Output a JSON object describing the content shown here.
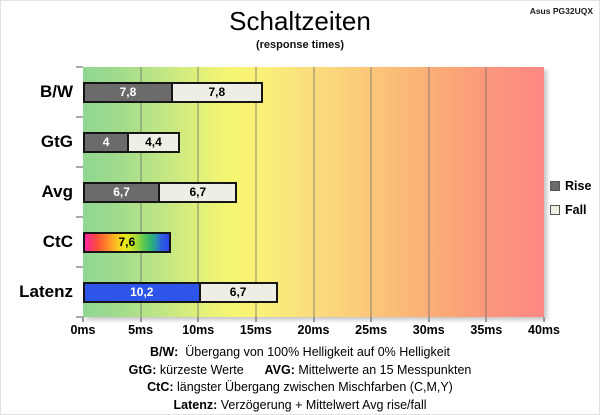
{
  "chart_data": {
    "type": "bar",
    "orientation": "horizontal",
    "stacked": true,
    "title": "Schaltzeiten",
    "subtitle": "(response times)",
    "watermark": "Asus PG32UQX",
    "categories": [
      "B/W",
      "GtG",
      "Avg",
      "CtC",
      "Latenz"
    ],
    "series": [
      {
        "name": "Rise",
        "values": [
          7.8,
          4,
          6.7,
          7.6,
          10.2
        ],
        "value_labels": [
          "7,8",
          "4",
          "6,7",
          "7,6",
          "10,2"
        ],
        "fills": [
          "gray",
          "gray",
          "gray",
          "rainbow",
          "blue"
        ],
        "default_fill": "gray"
      },
      {
        "name": "Fall",
        "values": [
          7.8,
          4.4,
          6.7,
          null,
          6.7
        ],
        "value_labels": [
          "7,8",
          "4,4",
          "6,7",
          null,
          "6,7"
        ],
        "fills": [
          "cream",
          "cream",
          "cream",
          null,
          "cream"
        ],
        "default_fill": "cream"
      }
    ],
    "xlim": [
      0,
      40
    ],
    "unit": "ms",
    "xtick_values": [
      0,
      5,
      10,
      15,
      20,
      25,
      30,
      35,
      40
    ],
    "xtick_labels": [
      "0ms",
      "5ms",
      "10ms",
      "15ms",
      "20ms",
      "25ms",
      "30ms",
      "35ms",
      "40ms"
    ],
    "grid": "vertical",
    "background": "green-to-red performance gradient",
    "legend_position": "right",
    "legend": [
      {
        "label": "Rise",
        "fill": "gray"
      },
      {
        "label": "Fall",
        "fill": "cream"
      }
    ],
    "colors": {
      "gray": "#6b6b6b",
      "cream": "#efeee5",
      "blue": "#2d55ea",
      "bar_border": "#151515",
      "gradient_left_green": "#90d792",
      "gradient_mid_yellow": "#f7f673",
      "gradient_right_red": "#fc8884"
    },
    "text_colors": {
      "gray": "#ffffff",
      "cream": "#000000",
      "blue": "#ffffff",
      "rainbow": "#000000"
    },
    "footnotes": [
      [
        {
          "text": "B/W:",
          "bold": true
        },
        {
          "text": "  Übergang von 100% Helligkeit auf 0% Helligkeit",
          "bold": false
        }
      ],
      [
        {
          "text": "GtG:",
          "bold": true
        },
        {
          "text": " kürzeste Werte      ",
          "bold": false
        },
        {
          "text": "AVG:",
          "bold": true
        },
        {
          "text": " Mittelwerte an 15 Messpunkten",
          "bold": false
        }
      ],
      [
        {
          "text": "CtC:",
          "bold": true
        },
        {
          "text": " längster Übergang zwischen Mischfarben (C,M,Y)",
          "bold": false
        }
      ],
      [
        {
          "text": "Latenz:",
          "bold": true
        },
        {
          "text": " Verzögerung + Mittelwert Avg rise/fall",
          "bold": false
        }
      ]
    ]
  }
}
